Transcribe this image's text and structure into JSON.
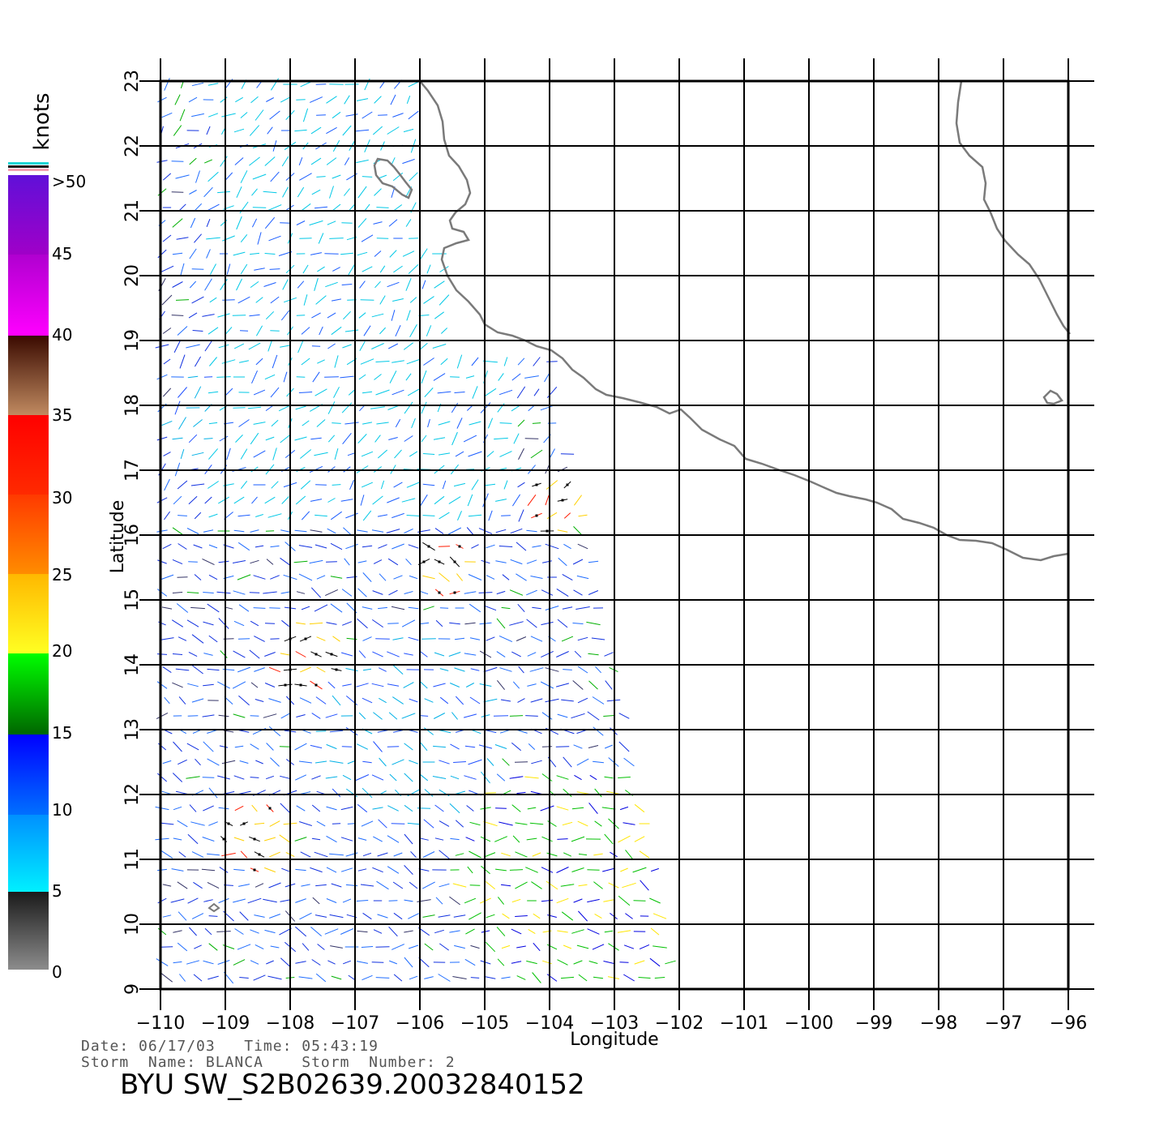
{
  "map": {
    "lon_range": [
      -110,
      -96
    ],
    "lat_range": [
      9,
      23
    ],
    "lon_ticks": [
      "−110",
      "−109",
      "−108",
      "−107",
      "−106",
      "−105",
      "−104",
      "−103",
      "−102",
      "−101",
      "−100",
      "−99",
      "−98",
      "−97",
      "−96"
    ],
    "lat_ticks": [
      "9",
      "10",
      "11",
      "12",
      "13",
      "14",
      "15",
      "16",
      "17",
      "18",
      "19",
      "20",
      "21",
      "22",
      "23"
    ],
    "xlabel": "Longitude",
    "ylabel": "Latitude",
    "grid": true,
    "coastline_color": "#7a7a7a"
  },
  "colorbar": {
    "title": "knots",
    "labels": [
      "0",
      "5",
      "10",
      "15",
      "20",
      "25",
      "30",
      "35",
      "40",
      "45",
      ">50"
    ],
    "colors": [
      "#8c8c8c",
      "#00e5f2",
      "#0000ff",
      "#00ff00",
      "#ffff22",
      "#ff7700",
      "#ff1a00",
      "#c09070",
      "#ff00ff",
      "#8020ff"
    ]
  },
  "footer": {
    "line1": "Date: 06/17/03   Time: 05:43:19",
    "line2": "Storm  Name: BLANCA    Storm  Number: 2",
    "id": "BYU  SW_S2B02639.20032840152"
  }
}
